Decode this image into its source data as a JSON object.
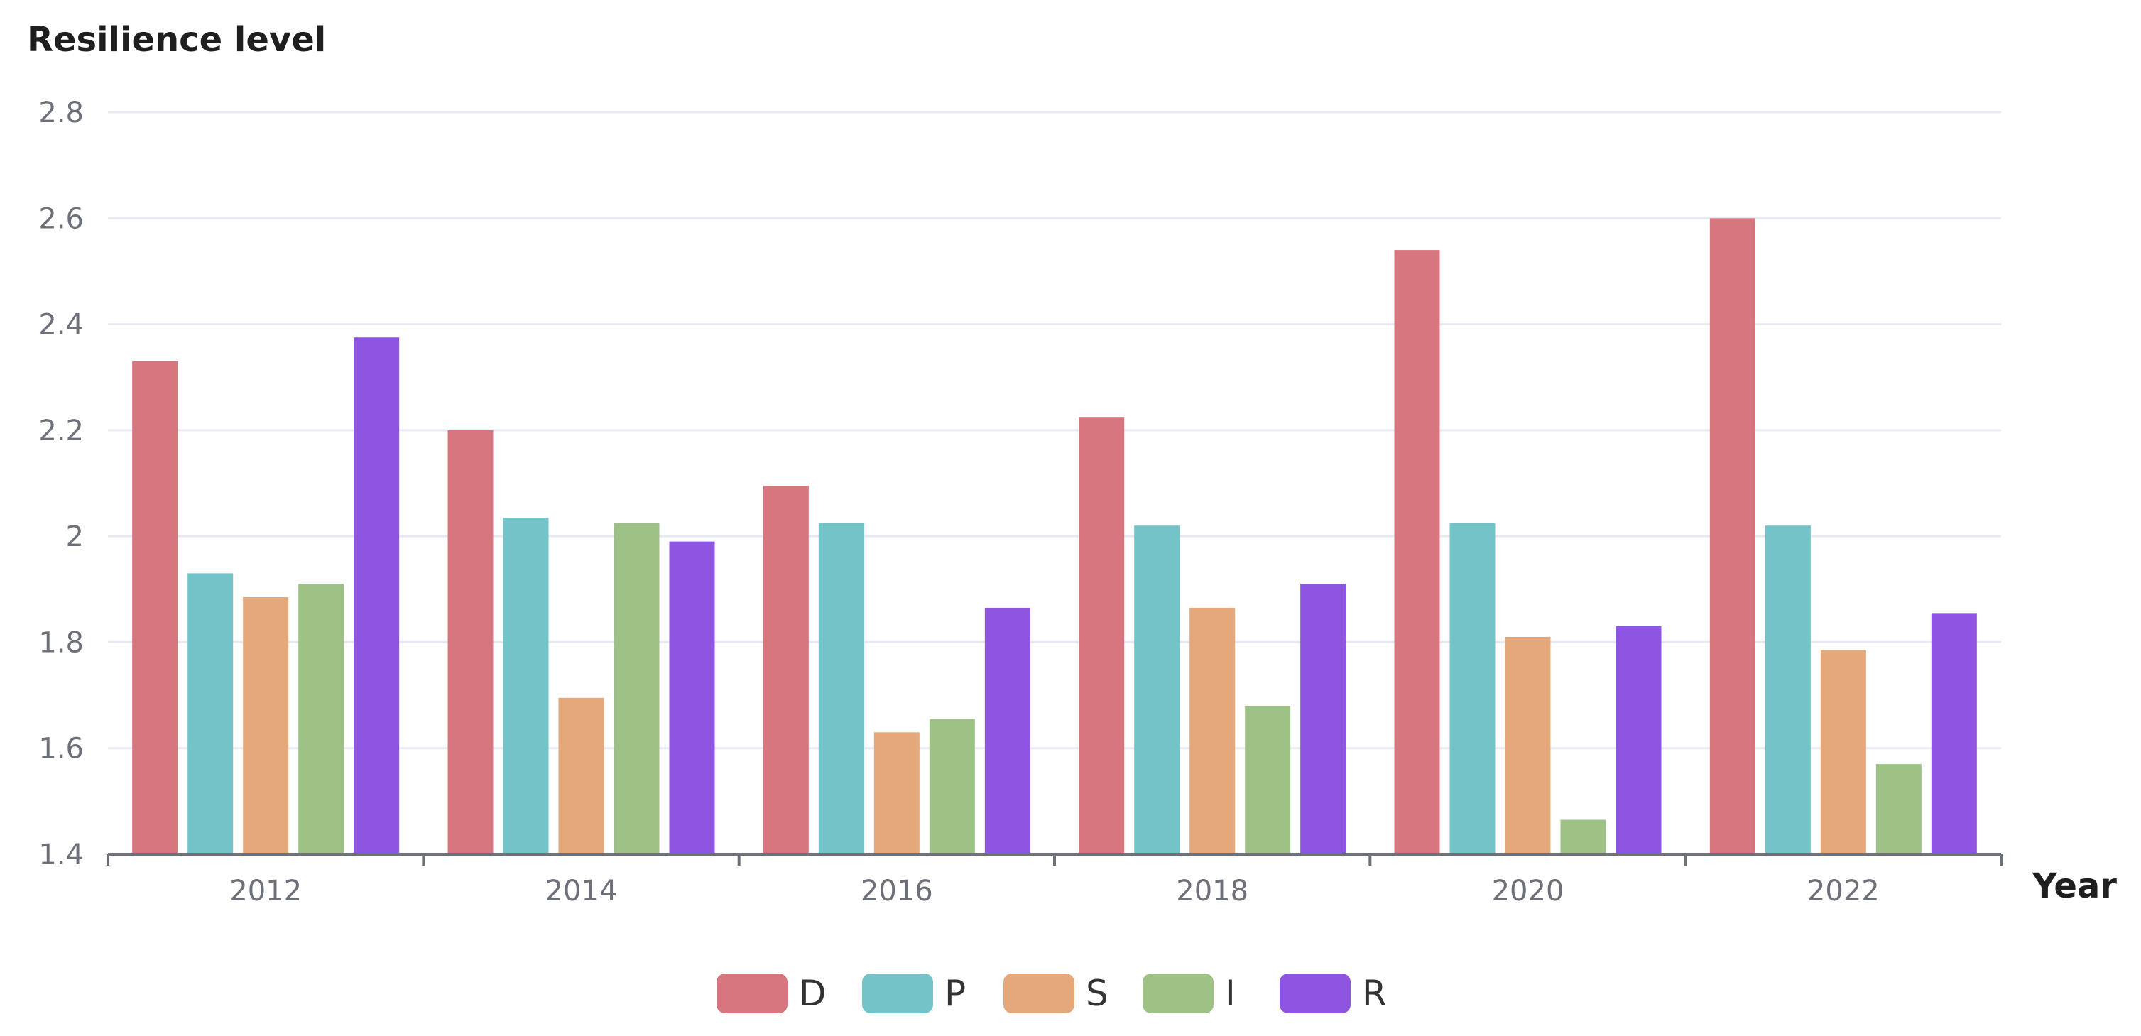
{
  "chart_data": {
    "type": "bar",
    "ylabel": "Resilience level",
    "xlabel": "Year",
    "ylim": [
      1.4,
      2.8
    ],
    "yticks": [
      "1.4",
      "1.6",
      "1.8",
      "2",
      "2.2",
      "2.4",
      "2.6",
      "2.8"
    ],
    "categories": [
      "2012",
      "2014",
      "2016",
      "2018",
      "2020",
      "2022"
    ],
    "grid": true,
    "legend_position": "bottom",
    "series": [
      {
        "name": "D",
        "color": "#d87680",
        "values": [
          2.33,
          2.2,
          2.095,
          2.225,
          2.54,
          2.6
        ]
      },
      {
        "name": "P",
        "color": "#72c4c8",
        "values": [
          1.93,
          2.035,
          2.025,
          2.02,
          2.025,
          2.02
        ]
      },
      {
        "name": "S",
        "color": "#e4a87a",
        "values": [
          1.885,
          1.695,
          1.63,
          1.865,
          1.81,
          1.785
        ]
      },
      {
        "name": "I",
        "color": "#9ec286",
        "values": [
          1.91,
          2.025,
          1.655,
          1.68,
          1.465,
          1.57
        ]
      },
      {
        "name": "R",
        "color": "#8e55e2",
        "values": [
          2.375,
          1.99,
          1.865,
          1.91,
          1.83,
          1.855
        ]
      }
    ]
  }
}
